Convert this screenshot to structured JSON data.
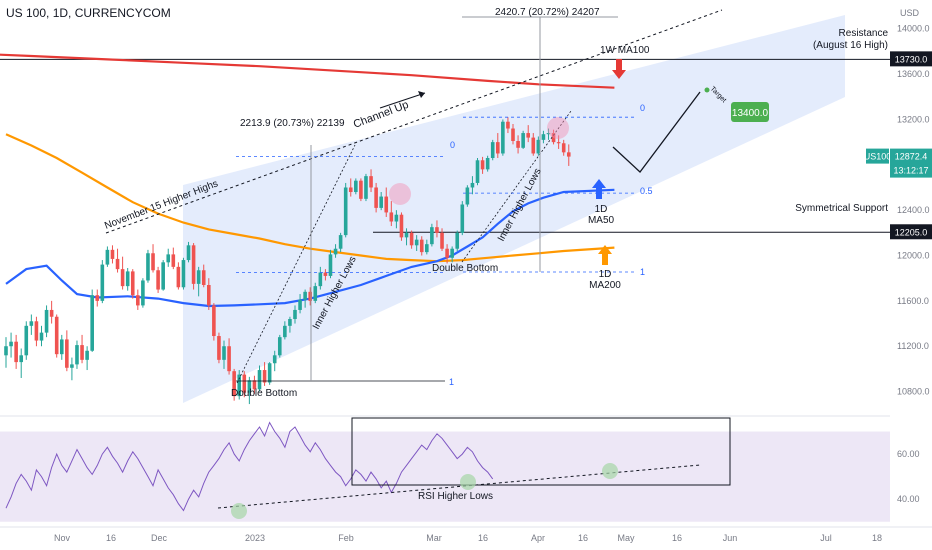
{
  "header": {
    "title": "US 100, 1D, CURRENCYCOM",
    "currency": "USD"
  },
  "colors": {
    "up": "#26a69a",
    "down": "#ef5350",
    "ma50": "#2962ff",
    "ma200": "#ff9800",
    "wma100": "#e53935",
    "channel": "#dbe6fb",
    "rsi": "#7e57c2",
    "rsi_band": "#ede7f6",
    "target": "#4caf50",
    "arrow_up": "#2962ff",
    "arrow_down": "#e53935",
    "arrow_orange": "#ff9800"
  },
  "chart_data": {
    "type": "candlestick",
    "symbol": "US100",
    "timeframe": "1D",
    "y_axis": {
      "ticks": [
        10800,
        11200,
        11600,
        12000,
        12400,
        12800,
        13200,
        13600,
        14000
      ],
      "ylim": [
        10620,
        14130
      ]
    },
    "x_axis": {
      "labels": [
        "Nov",
        "16",
        "Dec",
        "2023",
        "Feb",
        "Mar",
        "16",
        "Apr",
        "16",
        "May",
        "16",
        "Jun",
        "Jul",
        "18"
      ]
    },
    "price_badges": [
      {
        "label": "13730.0",
        "value": 13730,
        "style": "dark"
      },
      {
        "label": "US100",
        "value": 12872.4,
        "style": "green-tag"
      },
      {
        "label": "12872.4",
        "value": 12872.4,
        "style": "green"
      },
      {
        "label": "13:12:17",
        "value": 12872.4,
        "style": "green-sub"
      },
      {
        "label": "12205.0",
        "value": 12205,
        "style": "dark"
      }
    ],
    "candles": [
      [
        11120,
        11280,
        11010,
        11200
      ],
      [
        11200,
        11320,
        11100,
        11240
      ],
      [
        11240,
        11300,
        11000,
        11060
      ],
      [
        11060,
        11180,
        10920,
        11120
      ],
      [
        11120,
        11420,
        11080,
        11380
      ],
      [
        11380,
        11480,
        11300,
        11420
      ],
      [
        11420,
        11460,
        11200,
        11250
      ],
      [
        11250,
        11380,
        11200,
        11320
      ],
      [
        11320,
        11560,
        11280,
        11520
      ],
      [
        11520,
        11600,
        11400,
        11460
      ],
      [
        11460,
        11480,
        11100,
        11130
      ],
      [
        11130,
        11300,
        11080,
        11260
      ],
      [
        11260,
        11340,
        10980,
        11010
      ],
      [
        11010,
        11100,
        10900,
        11040
      ],
      [
        11040,
        11250,
        11000,
        11210
      ],
      [
        11210,
        11300,
        11050,
        11080
      ],
      [
        11080,
        11200,
        10990,
        11160
      ],
      [
        11160,
        11700,
        11150,
        11650
      ],
      [
        11650,
        11700,
        11550,
        11600
      ],
      [
        11600,
        11960,
        11580,
        11920
      ],
      [
        11920,
        12080,
        11900,
        12050
      ],
      [
        12050,
        12090,
        11930,
        11970
      ],
      [
        11970,
        12060,
        11850,
        11880
      ],
      [
        11880,
        11990,
        11700,
        11730
      ],
      [
        11730,
        11890,
        11690,
        11860
      ],
      [
        11860,
        11880,
        11620,
        11650
      ],
      [
        11650,
        11700,
        11520,
        11560
      ],
      [
        11560,
        11800,
        11540,
        11780
      ],
      [
        11780,
        12050,
        11760,
        12020
      ],
      [
        12020,
        12100,
        11850,
        11870
      ],
      [
        11870,
        11900,
        11670,
        11700
      ],
      [
        11700,
        11960,
        11690,
        11940
      ],
      [
        11940,
        12060,
        11900,
        12010
      ],
      [
        12010,
        12070,
        11880,
        11900
      ],
      [
        11900,
        11940,
        11700,
        11720
      ],
      [
        11720,
        11980,
        11700,
        11960
      ],
      [
        11960,
        12120,
        11940,
        12090
      ],
      [
        12090,
        12110,
        11700,
        11750
      ],
      [
        11750,
        11900,
        11640,
        11870
      ],
      [
        11870,
        11920,
        11720,
        11740
      ],
      [
        11740,
        11800,
        11520,
        11560
      ],
      [
        11560,
        11580,
        11250,
        11290
      ],
      [
        11290,
        11320,
        11050,
        11080
      ],
      [
        11080,
        11250,
        11000,
        11200
      ],
      [
        11200,
        11270,
        10950,
        10980
      ],
      [
        10980,
        11000,
        10720,
        10760
      ],
      [
        10760,
        10990,
        10730,
        10950
      ],
      [
        10950,
        10980,
        10750,
        10790
      ],
      [
        10790,
        10930,
        10690,
        10900
      ],
      [
        10900,
        10940,
        10780,
        10820
      ],
      [
        10820,
        11030,
        10800,
        10990
      ],
      [
        10990,
        11060,
        10850,
        10880
      ],
      [
        10880,
        11060,
        10860,
        11050
      ],
      [
        11050,
        11160,
        10980,
        11120
      ],
      [
        11120,
        11300,
        11100,
        11280
      ],
      [
        11280,
        11420,
        11260,
        11380
      ],
      [
        11380,
        11460,
        11320,
        11440
      ],
      [
        11440,
        11560,
        11400,
        11520
      ],
      [
        11520,
        11660,
        11490,
        11610
      ],
      [
        11610,
        11700,
        11540,
        11680
      ],
      [
        11680,
        11720,
        11560,
        11600
      ],
      [
        11600,
        11760,
        11580,
        11730
      ],
      [
        11730,
        11900,
        11700,
        11850
      ],
      [
        11850,
        11880,
        11780,
        11820
      ],
      [
        11820,
        12050,
        11800,
        12010
      ],
      [
        12010,
        12100,
        11980,
        12060
      ],
      [
        12060,
        12200,
        12030,
        12180
      ],
      [
        12180,
        12640,
        12160,
        12600
      ],
      [
        12600,
        12680,
        12520,
        12560
      ],
      [
        12560,
        12680,
        12540,
        12660
      ],
      [
        12660,
        12680,
        12480,
        12500
      ],
      [
        12500,
        12720,
        12480,
        12700
      ],
      [
        12700,
        12760,
        12560,
        12600
      ],
      [
        12600,
        12640,
        12380,
        12420
      ],
      [
        12420,
        12560,
        12400,
        12520
      ],
      [
        12520,
        12600,
        12340,
        12380
      ],
      [
        12380,
        12480,
        12260,
        12300
      ],
      [
        12300,
        12400,
        12240,
        12360
      ],
      [
        12360,
        12380,
        12130,
        12160
      ],
      [
        12160,
        12240,
        12090,
        12200
      ],
      [
        12200,
        12220,
        12060,
        12090
      ],
      [
        12090,
        12180,
        12040,
        12140
      ],
      [
        12140,
        12170,
        12000,
        12030
      ],
      [
        12030,
        12140,
        12010,
        12100
      ],
      [
        12100,
        12280,
        12080,
        12250
      ],
      [
        12250,
        12310,
        12160,
        12200
      ],
      [
        12200,
        12240,
        12040,
        12060
      ],
      [
        12060,
        12100,
        11930,
        11980
      ],
      [
        11980,
        12080,
        11940,
        12060
      ],
      [
        12060,
        12220,
        12040,
        12200
      ],
      [
        12200,
        12480,
        12180,
        12450
      ],
      [
        12450,
        12620,
        12430,
        12600
      ],
      [
        12600,
        12700,
        12540,
        12640
      ],
      [
        12640,
        12860,
        12620,
        12840
      ],
      [
        12840,
        12870,
        12720,
        12760
      ],
      [
        12760,
        12880,
        12740,
        12860
      ],
      [
        12860,
        13020,
        12840,
        13000
      ],
      [
        13000,
        13080,
        12860,
        12900
      ],
      [
        12900,
        13200,
        12880,
        13180
      ],
      [
        13180,
        13220,
        13080,
        13120
      ],
      [
        13120,
        13160,
        12980,
        13010
      ],
      [
        13010,
        13060,
        12900,
        12950
      ],
      [
        12950,
        13100,
        12940,
        13080
      ],
      [
        13080,
        13150,
        13000,
        13040
      ],
      [
        13040,
        13080,
        12880,
        12900
      ],
      [
        12900,
        13050,
        12880,
        13020
      ],
      [
        13020,
        13100,
        12990,
        13070
      ],
      [
        13070,
        13120,
        13020,
        13080
      ],
      [
        13080,
        13110,
        12980,
        13000
      ],
      [
        13000,
        13060,
        12940,
        12990
      ],
      [
        12990,
        13020,
        12880,
        12910
      ],
      [
        12910,
        12980,
        12790,
        12872.4
      ]
    ],
    "ma50": [
      [
        0,
        11750
      ],
      [
        4,
        11880
      ],
      [
        8,
        11910
      ],
      [
        11,
        11780
      ],
      [
        14,
        11660
      ],
      [
        18,
        11630
      ],
      [
        24,
        11640
      ],
      [
        30,
        11620
      ],
      [
        35,
        11580
      ],
      [
        40,
        11555
      ],
      [
        45,
        11560
      ],
      [
        50,
        11570
      ],
      [
        55,
        11580
      ],
      [
        60,
        11620
      ],
      [
        65,
        11680
      ],
      [
        70,
        11740
      ],
      [
        75,
        11820
      ],
      [
        80,
        11900
      ],
      [
        85,
        11950
      ],
      [
        88,
        12000
      ],
      [
        91,
        12080
      ],
      [
        94,
        12160
      ],
      [
        97,
        12280
      ],
      [
        100,
        12390
      ],
      [
        103,
        12460
      ],
      [
        106,
        12510
      ],
      [
        110,
        12560
      ],
      [
        120,
        12580
      ]
    ],
    "ma200": [
      [
        0,
        13070
      ],
      [
        5,
        12970
      ],
      [
        10,
        12860
      ],
      [
        15,
        12730
      ],
      [
        20,
        12600
      ],
      [
        25,
        12470
      ],
      [
        30,
        12370
      ],
      [
        35,
        12290
      ],
      [
        40,
        12230
      ],
      [
        45,
        12190
      ],
      [
        50,
        12150
      ],
      [
        55,
        12100
      ],
      [
        60,
        12060
      ],
      [
        65,
        12030
      ],
      [
        70,
        12000
      ],
      [
        75,
        11970
      ],
      [
        80,
        11960
      ],
      [
        85,
        11950
      ],
      [
        90,
        11960
      ],
      [
        95,
        11980
      ],
      [
        100,
        12000
      ],
      [
        105,
        12020
      ],
      [
        110,
        12040
      ],
      [
        120,
        12070
      ]
    ],
    "wma100": [
      [
        -6,
        13780
      ],
      [
        5,
        13760
      ],
      [
        20,
        13730
      ],
      [
        35,
        13700
      ],
      [
        50,
        13670
      ],
      [
        65,
        13630
      ],
      [
        80,
        13590
      ],
      [
        95,
        13540
      ],
      [
        105,
        13510
      ],
      [
        120,
        13480
      ]
    ],
    "rsi": {
      "ticks": [
        40,
        60
      ],
      "ylim": [
        29,
        76
      ],
      "band": [
        30,
        70
      ],
      "values": [
        36,
        41,
        47,
        51,
        48,
        44,
        53,
        50,
        46,
        54,
        60,
        55,
        52,
        57,
        62,
        58,
        54,
        51,
        55,
        60,
        63,
        59,
        56,
        52,
        57,
        61,
        58,
        54,
        50,
        46,
        53,
        49,
        45,
        42,
        38,
        35,
        40,
        44,
        41,
        47,
        52,
        55,
        58,
        62,
        65,
        60,
        57,
        62,
        66,
        69,
        72,
        68,
        74,
        70,
        67,
        63,
        70,
        72,
        68,
        64,
        61,
        65,
        62,
        58,
        55,
        52,
        50,
        46,
        49,
        53,
        51,
        48,
        52,
        49,
        45,
        48,
        43,
        47,
        52,
        55,
        58,
        61,
        64,
        62,
        66,
        69,
        67,
        64,
        61,
        58,
        60,
        63,
        61,
        57,
        54,
        52,
        49
      ]
    }
  },
  "annotations": {
    "nov_higher_highs": "November 15 Higher Highs",
    "channel_up": "Channel Up",
    "inner_higher_lows": "Inner Higher Lows",
    "double_bottom": "Double Bottom",
    "rsi_higher_lows": "RSI Higher Lows",
    "resistance_line1": "Resistance",
    "resistance_line2": "(August 16 High)",
    "wma100_label": "1W MA100",
    "symmetrical_support": "Symmetrical Support",
    "ma50_line1": "1D",
    "ma50_line2": "MA50",
    "ma200_line1": "1D",
    "ma200_line2": "MA200",
    "target_label": "Target",
    "target_value": "13400.0",
    "measure_top": "2420.7 (20.72%) 24207",
    "measure_left": "2213.9 (20.73%) 22139",
    "fib_0": "0",
    "fib_05": "0.5",
    "fib_1": "1"
  }
}
